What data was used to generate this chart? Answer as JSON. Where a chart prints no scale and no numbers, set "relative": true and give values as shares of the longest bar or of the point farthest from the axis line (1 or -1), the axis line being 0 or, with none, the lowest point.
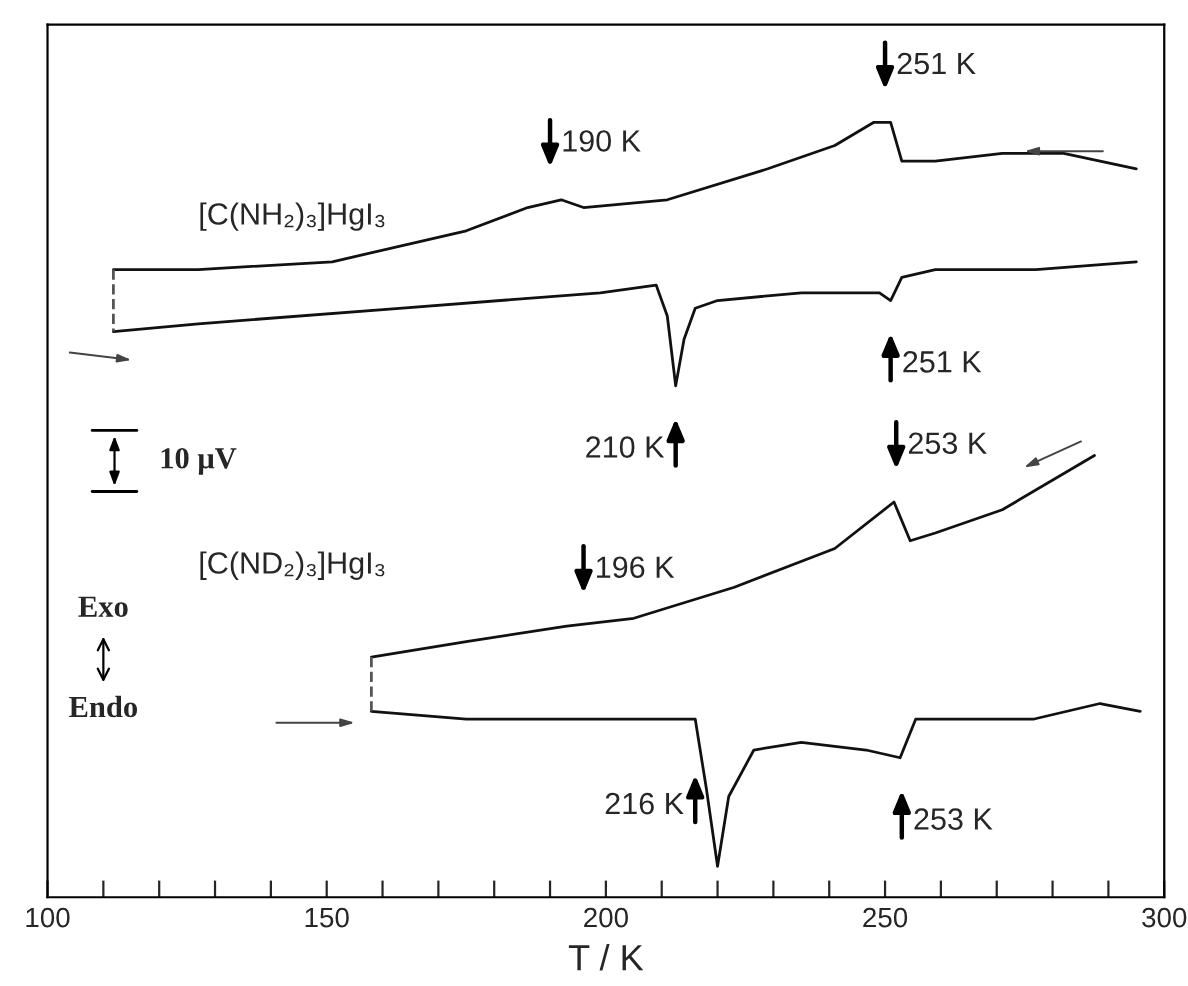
{
  "chart_data": {
    "type": "line",
    "relative": true,
    "xlabel": "T / K",
    "xlim": [
      100,
      300
    ],
    "xticks": [
      100,
      {
        "value": 110,
        "label": null
      },
      {
        "value": 120,
        "label": null
      },
      {
        "value": 130,
        "label": null
      },
      {
        "value": 140,
        "label": null
      },
      150,
      {
        "value": 160,
        "label": null
      },
      {
        "value": 170,
        "label": null
      },
      {
        "value": 180,
        "label": null
      },
      {
        "value": 190,
        "label": null
      },
      200,
      {
        "value": 210,
        "label": null
      },
      {
        "value": 220,
        "label": null
      },
      {
        "value": 230,
        "label": null
      },
      {
        "value": 240,
        "label": null
      },
      250,
      {
        "value": 260,
        "label": null
      },
      {
        "value": 270,
        "label": null
      },
      {
        "value": 280,
        "label": null
      },
      {
        "value": 290,
        "label": null
      },
      300
    ],
    "tick_labels": "x",
    "line_style": "solid",
    "series": [
      {
        "color": "#111111",
        "x": [
          111.8,
          127,
          151,
          175,
          186,
          192,
          196,
          211,
          229,
          241,
          248,
          251,
          253,
          259,
          271,
          282,
          295
        ],
        "values": [
          0.81,
          0.81,
          0.82,
          0.86,
          0.89,
          0.9,
          0.89,
          0.9,
          0.94,
          0.97,
          1.0,
          1.0,
          0.95,
          0.95,
          0.96,
          0.96,
          0.94
        ]
      },
      {
        "color": "#111111",
        "x": [
          111.8,
          127,
          163,
          199,
          209,
          211,
          212.5,
          214,
          216,
          220,
          235,
          249,
          251,
          253,
          259,
          277,
          295
        ],
        "values": [
          0.73,
          0.74,
          0.76,
          0.78,
          0.79,
          0.75,
          0.66,
          0.72,
          0.76,
          0.77,
          0.78,
          0.78,
          0.77,
          0.8,
          0.81,
          0.81,
          0.82
        ]
      },
      {
        "color": "#111111",
        "x": [
          158,
          175,
          193,
          205,
          223,
          241,
          251.6,
          254.5,
          259,
          271,
          287.5
        ],
        "values": [
          0.31,
          0.33,
          0.35,
          0.36,
          0.4,
          0.45,
          0.51,
          0.46,
          0.47,
          0.5,
          0.57
        ]
      },
      {
        "color": "#111111",
        "x": [
          158,
          175,
          202.5,
          216,
          218,
          220,
          222,
          226.5,
          235,
          246.6,
          252.7,
          255.5,
          259,
          276.7,
          288.5,
          295.7
        ],
        "values": [
          0.24,
          0.23,
          0.23,
          0.23,
          0.14,
          0.04,
          0.13,
          0.19,
          0.2,
          0.19,
          0.18,
          0.23,
          0.23,
          0.23,
          0.25,
          0.24
        ]
      },
      {
        "color": "#555555",
        "line_style": "dashed",
        "x": [
          111.8,
          111.8
        ],
        "values": [
          0.81,
          0.73
        ]
      },
      {
        "color": "#555555",
        "line_style": "dashed",
        "x": [
          158,
          158
        ],
        "values": [
          0.31,
          0.24
        ]
      }
    ],
    "annotations": [
      "[C(NH₂)₃]HgI₃",
      "[C(ND₂)₃]HgI₃",
      "10 μV",
      "Exo",
      "Endo",
      {
        "text": "190 K",
        "x": 190,
        "y": 0.9
      },
      {
        "text": "251 K",
        "x": 250,
        "y": 1.0
      },
      {
        "text": "210 K",
        "x": 212.5,
        "y": 0.66
      },
      {
        "text": "251 K",
        "x": 251,
        "y": 0.77
      },
      {
        "text": "196 K",
        "x": 196,
        "y": 0.35
      },
      {
        "text": "253 K",
        "x": 252,
        "y": 0.51
      },
      {
        "text": "216 K",
        "x": 216,
        "y": 0.2
      },
      {
        "text": "253 K",
        "x": 253,
        "y": 0.18
      }
    ]
  }
}
